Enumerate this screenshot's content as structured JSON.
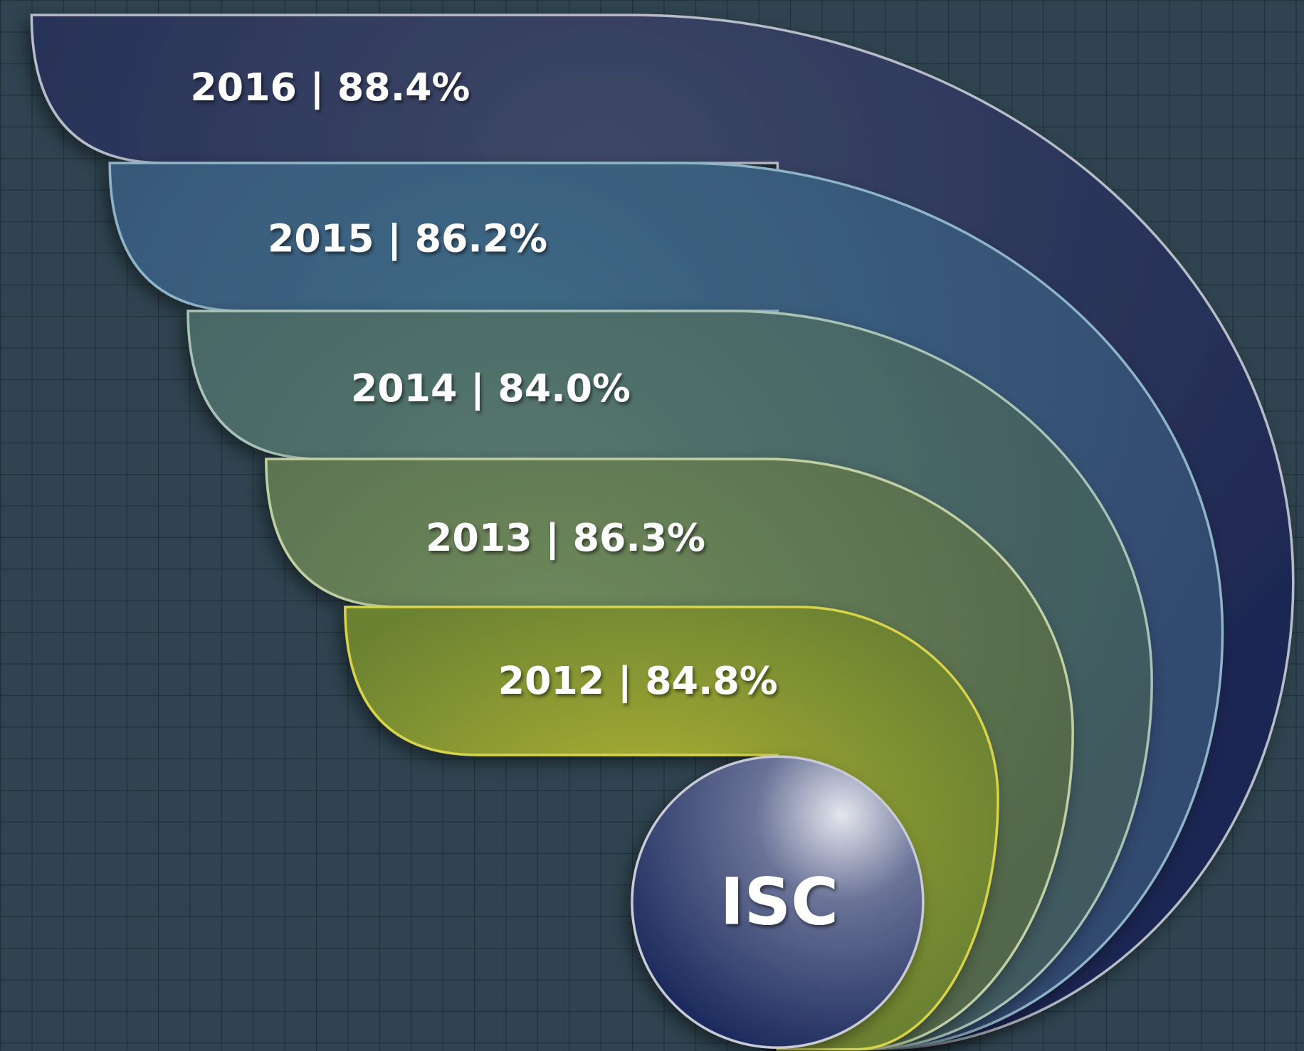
{
  "bands": [
    {
      "label": "2016 | 88.4%"
    },
    {
      "label": "2015 | 86.2%"
    },
    {
      "label": "2014 | 84.0%"
    },
    {
      "label": "2013 | 86.3%"
    },
    {
      "label": "2012 | 84.8%"
    }
  ],
  "center": {
    "label": "ISC"
  }
}
